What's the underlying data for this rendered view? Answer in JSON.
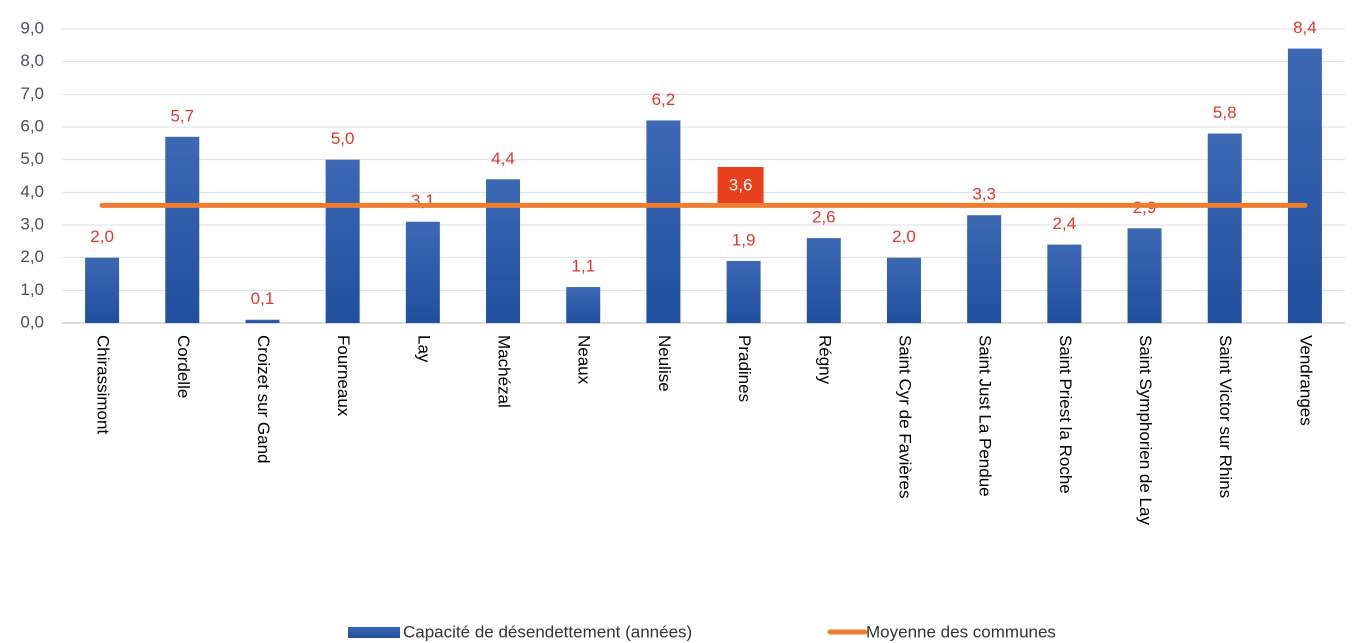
{
  "chart_data": {
    "type": "bar",
    "categories": [
      "Chirassimont",
      "Cordelle",
      "Croizet sur Gand",
      "Fourneaux",
      "Lay",
      "Machézal",
      "Neaux",
      "Neulise",
      "Pradines",
      "Régny",
      "Saint Cyr de Favières",
      "Saint Just La Pendue",
      "Saint Priest la Roche",
      "Saint Symphorien de Lay",
      "Saint Victor sur Rhins",
      "Vendranges"
    ],
    "series": [
      {
        "name": "Capacité de désendettement (années)",
        "color": "#2f5eab",
        "values": [
          2.0,
          5.7,
          0.1,
          5.0,
          3.1,
          4.4,
          1.1,
          6.2,
          1.9,
          2.6,
          2.0,
          3.3,
          2.4,
          2.9,
          5.8,
          8.4
        ],
        "value_labels": [
          "2,0",
          "5,7",
          "0,1",
          "5,0",
          "3,1",
          "4,4",
          "1,1",
          "6,2",
          "1,9",
          "2,6",
          "2,0",
          "3,3",
          "2,4",
          "2,9",
          "5,8",
          "8,4"
        ]
      },
      {
        "name": "Moyenne des communes",
        "color": "#ed7d31",
        "type": "line",
        "value": 3.6,
        "value_label": "3,6"
      }
    ],
    "ylim": [
      0,
      9
    ],
    "yticks": [
      {
        "value": 0,
        "label": "0,0"
      },
      {
        "value": 1,
        "label": "1,0"
      },
      {
        "value": 2,
        "label": "2,0"
      },
      {
        "value": 3,
        "label": "3,0"
      },
      {
        "value": 4,
        "label": "4,0"
      },
      {
        "value": 5,
        "label": "5,0"
      },
      {
        "value": 6,
        "label": "6,0"
      },
      {
        "value": 7,
        "label": "7,0"
      },
      {
        "value": 8,
        "label": "8,0"
      },
      {
        "value": 9,
        "label": "9,0"
      }
    ],
    "grid": true,
    "legend": "bottom"
  }
}
